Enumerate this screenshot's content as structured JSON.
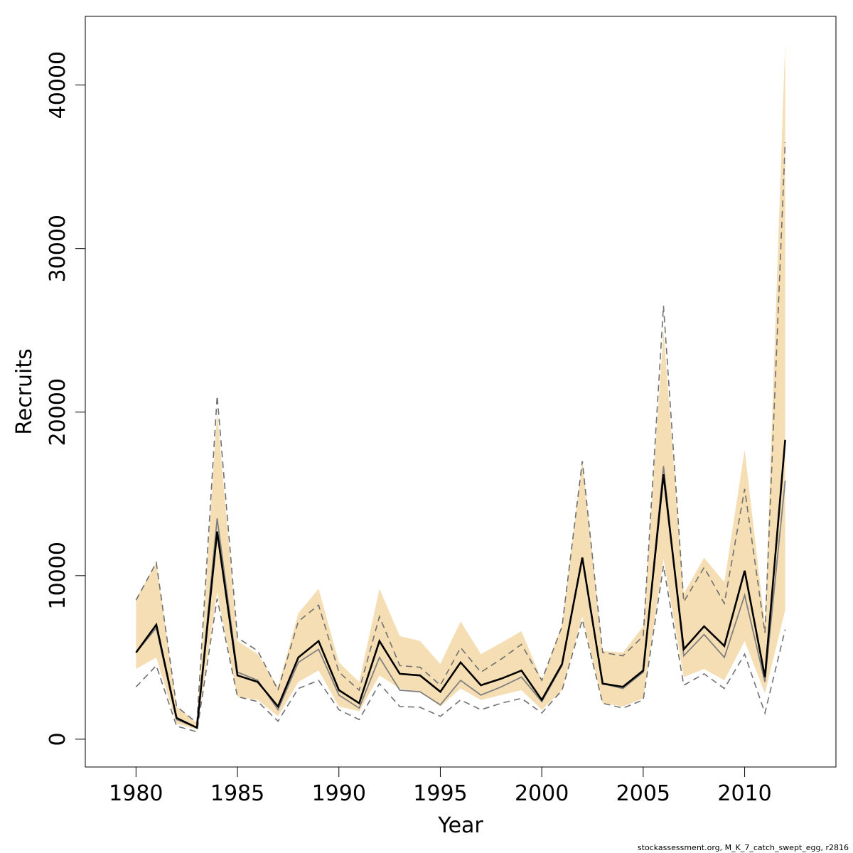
{
  "chart_data": {
    "type": "line",
    "xlabel": "Year",
    "ylabel": "Recruits",
    "xlim": [
      1977.5,
      2014.5
    ],
    "ylim": [
      -1700,
      44200
    ],
    "xticks": [
      "1980",
      "1985",
      "1990",
      "1995",
      "2000",
      "2005",
      "2010"
    ],
    "yticks": [
      "0",
      "10000",
      "20000",
      "30000",
      "40000"
    ],
    "grid": false,
    "legend": "none",
    "colors": {
      "band": "#f5deb3",
      "estimate": "#000000",
      "alternate": "#808080",
      "interval": "#707070",
      "frame": "#000000"
    },
    "x": [
      1980,
      1981,
      1982,
      1983,
      1984,
      1985,
      1986,
      1987,
      1988,
      1989,
      1990,
      1991,
      1992,
      1993,
      1994,
      1995,
      1996,
      1997,
      1998,
      1999,
      2000,
      2001,
      2002,
      2003,
      2004,
      2005,
      2006,
      2007,
      2008,
      2009,
      2010,
      2011,
      2012
    ],
    "band": {
      "upper": [
        8600,
        10800,
        2000,
        1000,
        20000,
        6000,
        5200,
        3200,
        7700,
        9200,
        4700,
        3500,
        9200,
        6300,
        6000,
        4600,
        7200,
        5200,
        5900,
        6600,
        3600,
        7000,
        17000,
        5400,
        5300,
        6900,
        25000,
        8900,
        11100,
        9600,
        17700,
        7000,
        42600
      ],
      "lower": [
        4300,
        5000,
        950,
        600,
        9000,
        2600,
        2400,
        1400,
        3500,
        4200,
        2000,
        1700,
        3900,
        3100,
        2900,
        2000,
        3100,
        2400,
        2700,
        3000,
        1800,
        3000,
        7500,
        2200,
        2000,
        2500,
        11000,
        3800,
        4300,
        3600,
        6000,
        2800,
        7900
      ]
    },
    "series": [
      {
        "values": [
          5300,
          7000,
          1300,
          700,
          12700,
          3900,
          3500,
          2000,
          5000,
          6000,
          3000,
          2200,
          6000,
          4000,
          3900,
          2900,
          4700,
          3300,
          3700,
          4200,
          2400,
          4600,
          11100,
          3400,
          3200,
          4200,
          16200,
          5500,
          6900,
          5700,
          10300,
          3800,
          18300
        ]
      },
      {
        "values": [
          5300,
          6800,
          1200,
          700,
          13500,
          4100,
          3600,
          1800,
          4700,
          5500,
          2700,
          1900,
          5000,
          3000,
          2900,
          2100,
          3600,
          2700,
          3200,
          3800,
          2300,
          4500,
          11100,
          3400,
          3100,
          4100,
          16700,
          5100,
          6400,
          5000,
          8800,
          3500,
          15800
        ]
      }
    ],
    "interval": {
      "upper": [
        8500,
        10800,
        2000,
        1000,
        21000,
        6200,
        5400,
        3000,
        7200,
        8200,
        4100,
        3000,
        7500,
        4500,
        4400,
        3300,
        5600,
        4100,
        4900,
        5800,
        3600,
        6900,
        17000,
        5300,
        5100,
        6300,
        26500,
        8400,
        10500,
        8300,
        15300,
        6500,
        36500
      ]
    },
    "interval_lower": [
      3200,
      4500,
      800,
      450,
      8600,
      2600,
      2300,
      1100,
      3100,
      3600,
      1800,
      1200,
      3400,
      2000,
      1950,
      1400,
      2400,
      1800,
      2200,
      2500,
      1600,
      3000,
      7300,
      2200,
      1900,
      2400,
      10600,
      3300,
      4000,
      3100,
      5200,
      1600,
      6700
    ]
  },
  "credit": "stockassessment.org, M_K_7_catch_swept_egg, r2816"
}
